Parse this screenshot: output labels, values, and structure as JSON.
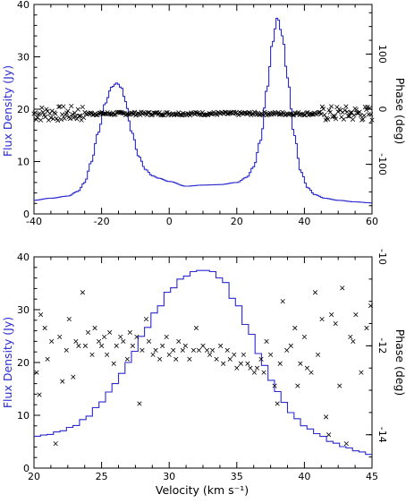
{
  "chart_data": [
    {
      "type": "line",
      "title": "",
      "xlabel": "",
      "ylabel": "Flux Density (Jy)",
      "y2label": "Phase (deg)",
      "xlim": [
        -40,
        60
      ],
      "ylim": [
        0,
        40
      ],
      "y2lim": [
        -190,
        190
      ],
      "xticks": [
        "-40",
        "-20",
        "0",
        "20",
        "40",
        "60"
      ],
      "yticks": [
        "0",
        "10",
        "20",
        "30",
        "40"
      ],
      "y2ticks": [
        "-100",
        "0",
        "100"
      ],
      "series": [
        {
          "role": "flux",
          "color": "#2a2ad0",
          "style": "histogram",
          "x": [
            -40,
            -35,
            -30,
            -27,
            -25,
            -23,
            -21,
            -19,
            -17,
            -15.5,
            -14,
            -13,
            -11,
            -9,
            -7,
            -5,
            -3,
            0,
            5,
            10,
            15,
            20,
            23,
            25,
            27,
            29,
            30.5,
            32,
            33.5,
            35,
            37,
            39,
            41,
            43,
            46,
            50,
            55,
            60
          ],
          "values": [
            2.6,
            3.0,
            3.4,
            4.3,
            6.0,
            10.0,
            15.5,
            21.0,
            24.2,
            25.0,
            24.0,
            21.5,
            15.5,
            11.0,
            8.5,
            7.3,
            6.8,
            6.2,
            5.3,
            5.5,
            5.6,
            6.0,
            7.0,
            9.0,
            14.0,
            24.0,
            32.5,
            37.5,
            34.0,
            26.0,
            15.0,
            8.0,
            5.0,
            3.7,
            3.0,
            2.6,
            2.3,
            2.1
          ]
        },
        {
          "role": "phase",
          "color": "#000000",
          "style": "points",
          "axis": "right",
          "x_range": [
            -40,
            60
          ],
          "baseline": -8,
          "scatter_edges": 14,
          "scatter_center": 3
        }
      ]
    },
    {
      "type": "line",
      "title": "",
      "xlabel": "Velocity (km s⁻¹)",
      "ylabel": "Flux Density (Jy)",
      "y2label": "Phase (deg)",
      "xlim": [
        20,
        45
      ],
      "ylim": [
        0,
        40
      ],
      "y2lim": [
        -14.75,
        -10
      ],
      "xticks": [
        "20",
        "25",
        "30",
        "35",
        "40",
        "45"
      ],
      "yticks": [
        "0",
        "10",
        "20",
        "30",
        "40"
      ],
      "y2ticks": [
        "-14",
        "-12",
        "-10"
      ],
      "series": [
        {
          "role": "flux",
          "color": "#2a2ad0",
          "style": "histogram",
          "x": [
            20,
            21,
            22,
            23,
            24,
            25,
            26,
            27,
            28,
            29,
            30,
            31,
            31.8,
            32.5,
            33.2,
            34,
            35,
            36,
            37,
            38,
            39,
            40,
            41,
            42,
            43,
            44,
            45
          ],
          "values": [
            6.0,
            6.3,
            7.0,
            8.0,
            9.8,
            12.5,
            16.0,
            20.0,
            25.0,
            29.5,
            33.5,
            36.0,
            37.2,
            37.5,
            37.2,
            35.5,
            31.0,
            25.5,
            19.5,
            14.5,
            10.5,
            8.0,
            6.5,
            5.0,
            4.0,
            3.2,
            2.5
          ]
        },
        {
          "role": "phase",
          "color": "#000000",
          "style": "points",
          "axis": "right",
          "points": [
            [
              20.2,
              -12.6
            ],
            [
              20.4,
              -13.1
            ],
            [
              20.5,
              -11.3
            ],
            [
              20.8,
              -11.6
            ],
            [
              21.0,
              -12.3
            ],
            [
              21.3,
              -11.9
            ],
            [
              21.6,
              -14.2
            ],
            [
              21.9,
              -11.8
            ],
            [
              22.1,
              -12.8
            ],
            [
              22.4,
              -12.1
            ],
            [
              22.6,
              -11.4
            ],
            [
              22.9,
              -12.7
            ],
            [
              23.1,
              -11.9
            ],
            [
              23.3,
              -12.0
            ],
            [
              23.6,
              -10.8
            ],
            [
              23.8,
              -12.0
            ],
            [
              24.0,
              -11.7
            ],
            [
              24.3,
              -12.2
            ],
            [
              24.5,
              -11.6
            ],
            [
              24.8,
              -11.9
            ],
            [
              25.0,
              -12.0
            ],
            [
              25.2,
              -11.8
            ],
            [
              25.4,
              -12.2
            ],
            [
              25.6,
              -11.7
            ],
            [
              25.9,
              -12.4
            ],
            [
              26.1,
              -12.0
            ],
            [
              26.4,
              -11.8
            ],
            [
              26.6,
              -11.9
            ],
            [
              26.9,
              -12.3
            ],
            [
              27.1,
              -11.7
            ],
            [
              27.3,
              -12.0
            ],
            [
              27.6,
              -11.8
            ],
            [
              27.8,
              -13.3
            ],
            [
              28.0,
              -12.1
            ],
            [
              28.3,
              -11.4
            ],
            [
              28.5,
              -11.9
            ],
            [
              28.8,
              -12.2
            ],
            [
              29.0,
              -12.1
            ],
            [
              29.3,
              -12.3
            ],
            [
              29.5,
              -12.0
            ],
            [
              29.8,
              -11.8
            ],
            [
              30.0,
              -12.2
            ],
            [
              30.3,
              -12.1
            ],
            [
              30.5,
              -12.3
            ],
            [
              30.7,
              -11.9
            ],
            [
              31.0,
              -12.1
            ],
            [
              31.2,
              -12.0
            ],
            [
              31.5,
              -12.3
            ],
            [
              31.8,
              -12.1
            ],
            [
              32.0,
              -11.6
            ],
            [
              32.2,
              -12.1
            ],
            [
              32.5,
              -12.0
            ],
            [
              32.8,
              -12.1
            ],
            [
              33.0,
              -12.2
            ],
            [
              33.2,
              -12.1
            ],
            [
              33.5,
              -12.3
            ],
            [
              33.8,
              -12.0
            ],
            [
              34.0,
              -12.4
            ],
            [
              34.3,
              -12.1
            ],
            [
              34.5,
              -12.3
            ],
            [
              34.8,
              -12.2
            ],
            [
              35.0,
              -12.5
            ],
            [
              35.3,
              -12.4
            ],
            [
              35.5,
              -12.2
            ],
            [
              35.8,
              -12.4
            ],
            [
              36.0,
              -12.5
            ],
            [
              36.3,
              -12.6
            ],
            [
              36.5,
              -12.5
            ],
            [
              36.8,
              -12.3
            ],
            [
              37.0,
              -12.6
            ],
            [
              37.2,
              -11.9
            ],
            [
              37.5,
              -12.2
            ],
            [
              37.8,
              -12.9
            ],
            [
              38.0,
              -13.3
            ],
            [
              38.2,
              -12.4
            ],
            [
              38.4,
              -11.0
            ],
            [
              38.7,
              -12.1
            ],
            [
              39.0,
              -12.0
            ],
            [
              39.3,
              -11.6
            ],
            [
              39.5,
              -12.9
            ],
            [
              39.7,
              -12.4
            ],
            [
              40.0,
              -11.8
            ],
            [
              40.2,
              -12.5
            ],
            [
              40.5,
              -12.6
            ],
            [
              40.8,
              -10.8
            ],
            [
              41.0,
              -12.2
            ],
            [
              41.3,
              -11.4
            ],
            [
              41.6,
              -13.6
            ],
            [
              41.8,
              -14.0
            ],
            [
              42.0,
              -11.3
            ],
            [
              42.3,
              -11.5
            ],
            [
              42.6,
              -12.9
            ],
            [
              42.8,
              -10.7
            ],
            [
              43.1,
              -14.2
            ],
            [
              43.4,
              -11.8
            ],
            [
              43.6,
              -11.9
            ],
            [
              43.8,
              -11.3
            ],
            [
              44.2,
              -12.6
            ],
            [
              44.6,
              -11.6
            ],
            [
              44.9,
              -11.1
            ]
          ]
        }
      ]
    }
  ]
}
